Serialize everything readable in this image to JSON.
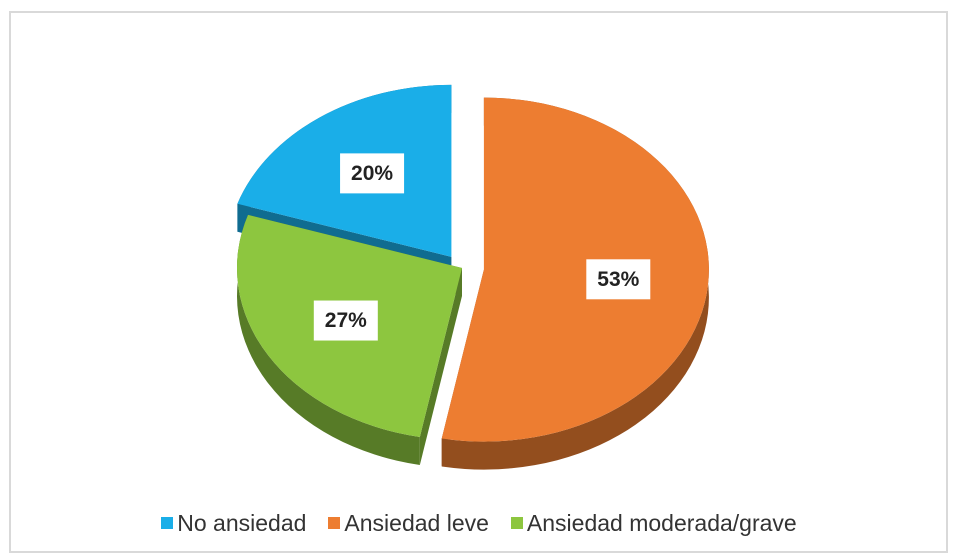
{
  "chart_data": {
    "type": "pie",
    "categories": [
      "No ansiedad",
      "Ansiedad leve",
      "Ansiedad moderada/grave"
    ],
    "values": [
      20,
      53,
      27
    ],
    "value_labels": [
      "20%",
      "53%",
      "27%"
    ],
    "colors": [
      "#1aaee8",
      "#ed7d31",
      "#8dc63f"
    ],
    "legend": "bottom"
  }
}
